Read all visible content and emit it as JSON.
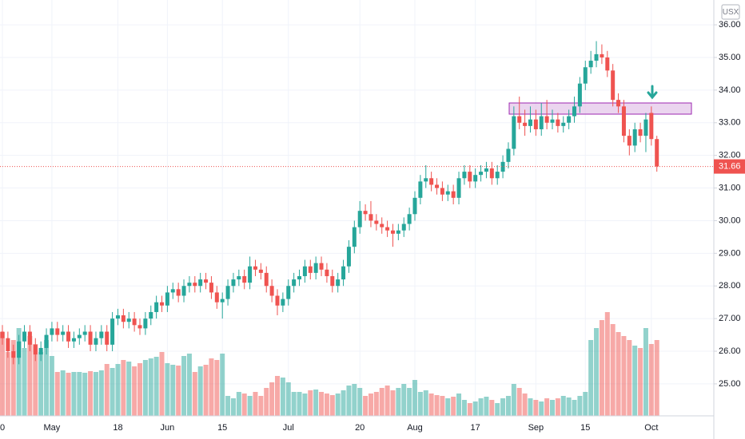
{
  "chart_data": {
    "type": "candlestick",
    "symbol_label": "USX",
    "categories": [
      "0",
      null,
      null,
      null,
      null,
      null,
      null,
      null,
      null,
      "May",
      null,
      null,
      null,
      null,
      null,
      null,
      null,
      null,
      null,
      null,
      null,
      "18",
      null,
      null,
      null,
      null,
      null,
      null,
      null,
      null,
      "Jun",
      null,
      null,
      null,
      null,
      null,
      null,
      null,
      null,
      null,
      "15",
      null,
      null,
      null,
      null,
      null,
      null,
      null,
      null,
      null,
      null,
      null,
      "Jul",
      null,
      null,
      null,
      null,
      null,
      null,
      null,
      null,
      null,
      null,
      null,
      null,
      "20",
      null,
      null,
      null,
      null,
      null,
      null,
      null,
      null,
      null,
      "Aug",
      null,
      null,
      null,
      null,
      null,
      null,
      null,
      null,
      null,
      null,
      "17",
      null,
      null,
      null,
      null,
      null,
      null,
      null,
      null,
      null,
      null,
      "Sep",
      null,
      null,
      null,
      null,
      null,
      null,
      null,
      null,
      "15",
      null,
      null,
      null,
      null,
      null,
      null,
      null,
      null,
      null,
      null,
      null,
      "Oct",
      null
    ],
    "open": [
      26.6,
      26.4,
      26.0,
      25.8,
      26.3,
      26.6,
      26.2,
      25.9,
      26.1,
      26.5,
      26.7,
      26.5,
      26.6,
      26.3,
      26.4,
      26.5,
      26.6,
      26.2,
      26.4,
      26.6,
      26.2,
      27.0,
      27.1,
      26.9,
      27.0,
      26.8,
      26.7,
      27.0,
      27.2,
      27.5,
      27.4,
      27.8,
      27.9,
      27.7,
      28.0,
      28.1,
      28.0,
      28.2,
      28.1,
      27.8,
      27.5,
      27.6,
      28.0,
      28.2,
      28.3,
      28.1,
      28.6,
      28.5,
      28.4,
      28.0,
      27.7,
      27.4,
      27.6,
      28.0,
      28.2,
      28.3,
      28.6,
      28.4,
      28.7,
      28.5,
      28.3,
      28.0,
      28.2,
      28.6,
      29.2,
      29.8,
      30.3,
      30.2,
      30.0,
      29.9,
      29.8,
      29.7,
      29.6,
      29.7,
      29.9,
      30.2,
      30.7,
      31.2,
      31.3,
      31.1,
      31.0,
      30.8,
      30.9,
      30.7,
      31.3,
      31.5,
      31.2,
      31.4,
      31.5,
      31.6,
      31.3,
      31.5,
      31.8,
      32.2,
      33.2,
      33.0,
      32.9,
      33.1,
      32.8,
      33.2,
      33.0,
      33.1,
      32.9,
      33.0,
      33.2,
      33.5,
      34.2,
      34.7,
      34.9,
      35.1,
      35.0,
      34.6,
      33.7,
      33.5,
      32.6,
      32.3,
      32.8,
      32.6,
      33.3,
      32.5
    ],
    "high": [
      26.8,
      26.6,
      26.2,
      26.5,
      26.8,
      26.8,
      26.4,
      26.3,
      26.7,
      26.9,
      26.9,
      26.8,
      26.8,
      26.6,
      26.7,
      26.8,
      26.8,
      26.6,
      26.8,
      26.8,
      27.2,
      27.3,
      27.3,
      27.2,
      27.2,
      27.0,
      27.2,
      27.4,
      27.7,
      27.7,
      28.0,
      28.1,
      28.1,
      28.2,
      28.3,
      28.3,
      28.4,
      28.4,
      28.3,
      28.0,
      27.8,
      28.2,
      28.4,
      28.5,
      28.5,
      28.9,
      28.8,
      28.7,
      28.6,
      28.2,
      27.9,
      27.8,
      28.2,
      28.4,
      28.5,
      28.8,
      28.8,
      28.9,
      28.9,
      28.7,
      28.5,
      28.4,
      28.8,
      29.4,
      30.0,
      30.6,
      30.5,
      30.6,
      30.2,
      30.1,
      30.0,
      29.9,
      29.9,
      30.1,
      30.4,
      30.9,
      31.4,
      31.7,
      31.5,
      31.3,
      31.2,
      31.1,
      31.1,
      31.5,
      31.7,
      31.7,
      31.6,
      31.7,
      31.8,
      31.8,
      31.7,
      32.0,
      32.4,
      33.5,
      33.8,
      33.4,
      33.5,
      33.4,
      33.6,
      33.7,
      33.4,
      33.3,
      33.2,
      33.4,
      33.8,
      34.4,
      34.9,
      35.2,
      35.5,
      35.4,
      35.2,
      34.8,
      33.9,
      33.7,
      32.8,
      33.0,
      33.0,
      33.3,
      33.5,
      32.6
    ],
    "low": [
      26.2,
      25.8,
      25.6,
      25.6,
      26.1,
      26.0,
      25.7,
      25.7,
      25.9,
      26.3,
      26.3,
      26.3,
      26.1,
      26.1,
      26.2,
      26.3,
      26.0,
      26.0,
      26.2,
      26.0,
      26.0,
      26.8,
      26.7,
      26.7,
      26.6,
      26.5,
      26.5,
      26.8,
      27.0,
      27.2,
      27.2,
      27.6,
      27.5,
      27.5,
      27.8,
      27.8,
      27.8,
      27.9,
      27.6,
      27.3,
      27.0,
      27.4,
      27.8,
      28.0,
      27.9,
      27.9,
      28.3,
      28.2,
      27.8,
      27.5,
      27.1,
      27.2,
      27.4,
      27.8,
      28.0,
      28.1,
      28.2,
      28.2,
      28.3,
      28.1,
      27.8,
      27.8,
      28.0,
      28.4,
      29.0,
      29.6,
      30.0,
      29.8,
      29.7,
      29.6,
      29.5,
      29.2,
      29.4,
      29.5,
      29.7,
      30.0,
      30.5,
      31.0,
      30.9,
      30.8,
      30.6,
      30.6,
      30.5,
      30.5,
      31.1,
      31.0,
      31.0,
      31.2,
      31.3,
      31.1,
      31.1,
      31.3,
      31.6,
      32.0,
      32.8,
      32.6,
      32.7,
      32.6,
      32.6,
      32.8,
      32.8,
      32.7,
      32.7,
      32.8,
      33.0,
      33.3,
      34.0,
      34.5,
      34.7,
      34.8,
      34.4,
      33.5,
      33.3,
      32.4,
      32.0,
      32.1,
      32.4,
      32.1,
      32.3,
      31.5
    ],
    "close": [
      26.4,
      26.0,
      25.8,
      26.3,
      26.6,
      26.2,
      25.9,
      26.1,
      26.5,
      26.7,
      26.5,
      26.6,
      26.3,
      26.4,
      26.5,
      26.6,
      26.2,
      26.4,
      26.6,
      26.2,
      27.0,
      27.1,
      26.9,
      27.0,
      26.8,
      26.7,
      27.0,
      27.2,
      27.5,
      27.4,
      27.8,
      27.9,
      27.7,
      28.0,
      28.1,
      28.0,
      28.2,
      28.1,
      27.8,
      27.5,
      27.6,
      28.0,
      28.2,
      28.3,
      28.1,
      28.6,
      28.5,
      28.4,
      28.0,
      27.7,
      27.4,
      27.6,
      28.0,
      28.2,
      28.3,
      28.6,
      28.4,
      28.7,
      28.5,
      28.3,
      28.0,
      28.2,
      28.6,
      29.2,
      29.8,
      30.3,
      30.2,
      30.0,
      29.9,
      29.8,
      29.7,
      29.6,
      29.7,
      29.9,
      30.2,
      30.7,
      31.2,
      31.3,
      31.1,
      31.0,
      30.8,
      30.9,
      30.7,
      31.3,
      31.5,
      31.2,
      31.4,
      31.5,
      31.6,
      31.3,
      31.5,
      31.8,
      32.2,
      33.2,
      33.0,
      32.9,
      33.1,
      32.8,
      33.2,
      33.0,
      33.1,
      32.9,
      33.0,
      33.2,
      33.5,
      34.2,
      34.7,
      34.9,
      35.1,
      35.0,
      34.6,
      33.7,
      33.5,
      32.6,
      32.3,
      32.8,
      32.6,
      33.1,
      32.5,
      31.66
    ],
    "volume": [
      105,
      80,
      95,
      110,
      85,
      100,
      90,
      80,
      95,
      75,
      55,
      57,
      54,
      55,
      55,
      54,
      56,
      55,
      57,
      65,
      60,
      65,
      70,
      68,
      62,
      66,
      70,
      72,
      74,
      80,
      66,
      64,
      63,
      75,
      78,
      55,
      62,
      64,
      72,
      70,
      78,
      25,
      22,
      30,
      28,
      25,
      30,
      25,
      35,
      42,
      50,
      48,
      42,
      30,
      30,
      28,
      32,
      33,
      30,
      28,
      26,
      28,
      32,
      38,
      40,
      35,
      25,
      28,
      30,
      35,
      38,
      32,
      35,
      40,
      35,
      45,
      30,
      32,
      28,
      26,
      25,
      22,
      24,
      28,
      20,
      16,
      18,
      22,
      24,
      20,
      16,
      22,
      25,
      40,
      35,
      28,
      22,
      20,
      18,
      22,
      20,
      22,
      25,
      23,
      20,
      25,
      30,
      95,
      110,
      120,
      130,
      115,
      105,
      100,
      95,
      88,
      85,
      110,
      90,
      95
    ],
    "up_color": "#26a69a",
    "down_color": "#ef5350",
    "ylim": [
      24.02,
      36.76
    ],
    "yticks": [
      {
        "value": 25,
        "label": "25.00"
      },
      {
        "value": 26,
        "label": "26.00"
      },
      {
        "value": 27,
        "label": "27.00"
      },
      {
        "value": 28,
        "label": "28.00"
      },
      {
        "value": 29,
        "label": "29.00"
      },
      {
        "value": 30,
        "label": "30.00"
      },
      {
        "value": 31,
        "label": "31.00"
      },
      {
        "value": 32,
        "label": "32.00"
      },
      {
        "value": 33,
        "label": "33.00"
      },
      {
        "value": 34,
        "label": "34.00"
      },
      {
        "value": 35,
        "label": "35.00"
      },
      {
        "value": 36,
        "label": "36.00"
      }
    ],
    "grid": true
  }
}
